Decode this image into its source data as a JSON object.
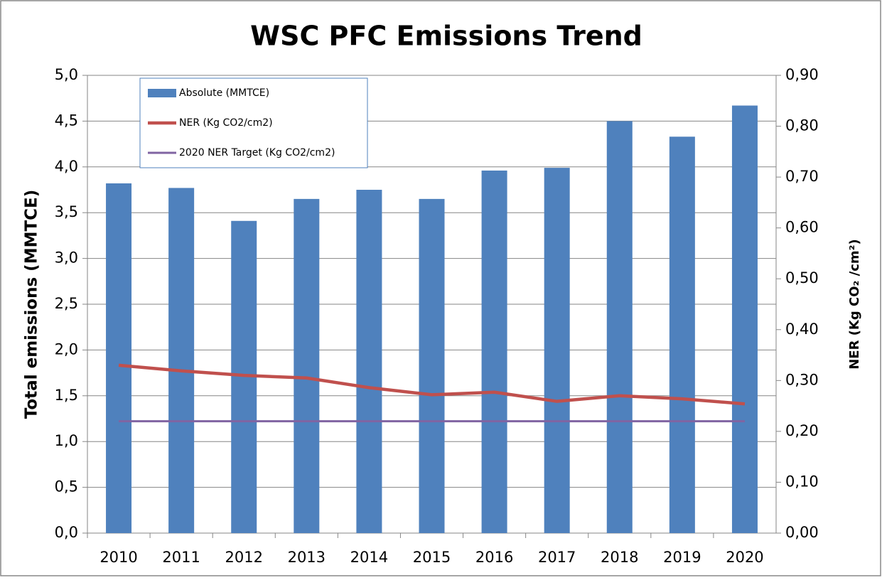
{
  "chart_data": {
    "type": "bar",
    "title": "WSC PFC Emissions Trend",
    "ylabel": "Total emissions (MMTCE)",
    "y2label": "NER (Kg CO₂ /cm²)",
    "categories": [
      "2010",
      "2011",
      "2012",
      "2013",
      "2014",
      "2015",
      "2016",
      "2017",
      "2018",
      "2019",
      "2020"
    ],
    "series": [
      {
        "name": "Absolute (MMTCE)",
        "type": "bar",
        "color": "#4f81bd",
        "values": [
          3.82,
          3.77,
          3.41,
          3.65,
          3.75,
          3.65,
          3.96,
          3.99,
          4.5,
          4.33,
          4.67
        ]
      },
      {
        "name": "NER (Kg CO2/cm2)",
        "type": "line",
        "axis": "y2",
        "color": "#c0504d",
        "values": [
          0.33,
          0.319,
          0.31,
          0.305,
          0.286,
          0.272,
          0.277,
          0.259,
          0.27,
          0.264,
          0.254
        ]
      },
      {
        "name": "2020 NER Target (Kg CO2/cm2)",
        "type": "line",
        "axis": "y2",
        "color": "#8064a2",
        "values": [
          0.22,
          0.22,
          0.22,
          0.22,
          0.22,
          0.22,
          0.22,
          0.22,
          0.22,
          0.22,
          0.22
        ]
      }
    ],
    "ylim": [
      0,
      5
    ],
    "yticks": [
      {
        "value": 0,
        "label": "0,0"
      },
      {
        "value": 0.5,
        "label": "0,5"
      },
      {
        "value": 1,
        "label": "1,0"
      },
      {
        "value": 1.5,
        "label": "1,5"
      },
      {
        "value": 2,
        "label": "2,0"
      },
      {
        "value": 2.5,
        "label": "2,5"
      },
      {
        "value": 3,
        "label": "3,0"
      },
      {
        "value": 3.5,
        "label": "3,5"
      },
      {
        "value": 4,
        "label": "4,0"
      },
      {
        "value": 4.5,
        "label": "4,5"
      },
      {
        "value": 5,
        "label": "5,0"
      }
    ],
    "y2lim": [
      0,
      0.9
    ],
    "y2ticks": [
      {
        "value": 0,
        "label": "0,00"
      },
      {
        "value": 0.1,
        "label": "0,10"
      },
      {
        "value": 0.2,
        "label": "0,20"
      },
      {
        "value": 0.3,
        "label": "0,30"
      },
      {
        "value": 0.4,
        "label": "0,40"
      },
      {
        "value": 0.5,
        "label": "0,50"
      },
      {
        "value": 0.6,
        "label": "0,60"
      },
      {
        "value": 0.7,
        "label": "0,70"
      },
      {
        "value": 0.8,
        "label": "0,80"
      },
      {
        "value": 0.9,
        "label": "0,90"
      }
    ],
    "grid": true,
    "legend": "upper left"
  }
}
